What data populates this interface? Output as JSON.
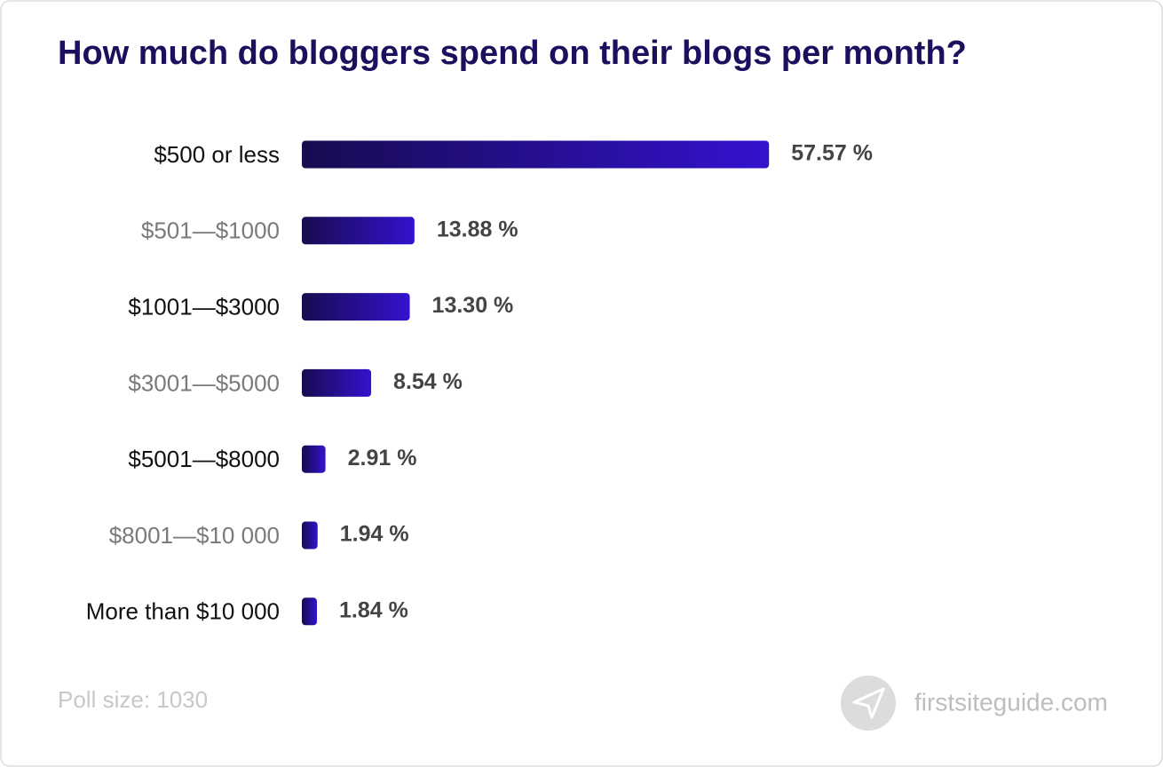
{
  "chart_data": {
    "type": "bar",
    "orientation": "horizontal",
    "title": "How much do bloggers spend on their blogs per month?",
    "categories": [
      "$500 or less",
      "$501—$1000",
      "$1001—$3000",
      "$3001—$5000",
      "$5001—$8000",
      "$8001—$10 000",
      "More than $10 000"
    ],
    "values": [
      57.57,
      13.88,
      13.3,
      8.54,
      2.91,
      1.94,
      1.84
    ],
    "value_labels": [
      "57.57 %",
      "13.88 %",
      "13.30 %",
      "8.54 %",
      "2.91 %",
      "1.94 %",
      "1.84 %"
    ],
    "color": "#3412cf",
    "note": "Poll size: 1030",
    "source": "firstsiteguide.com"
  }
}
